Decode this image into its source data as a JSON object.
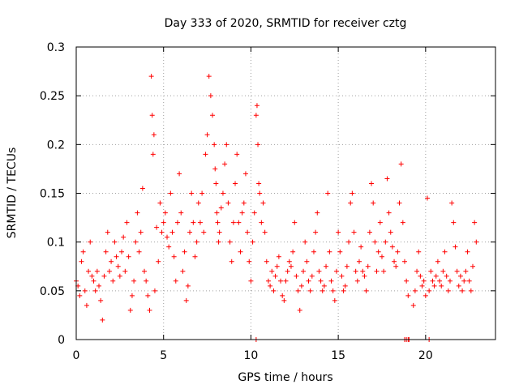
{
  "chart_data": {
    "type": "scatter",
    "title": "Day 333 of 2020, SRMTID for receiver cztg",
    "xlabel": "GPS time / hours",
    "ylabel": "SRMTID / TECUs",
    "xlim": [
      0,
      24
    ],
    "ylim": [
      0,
      0.3
    ],
    "xticks": [
      0,
      5,
      10,
      15,
      20
    ],
    "xtick_labels": [
      "0",
      "5",
      "10",
      "15",
      "20"
    ],
    "yticks": [
      0,
      0.05,
      0.1,
      0.15,
      0.2,
      0.25,
      0.3
    ],
    "ytick_labels": [
      "0",
      "0.05",
      "0.1",
      "0.15",
      "0.2",
      "0.25",
      "0.3"
    ],
    "grid": true,
    "marker": "+",
    "color": "#ff0000",
    "series": [
      {
        "name": "SRMTID",
        "x": [
          0.0,
          0.1,
          0.2,
          0.3,
          0.4,
          0.5,
          0.6,
          0.7,
          0.8,
          0.9,
          1.0,
          1.1,
          1.2,
          1.3,
          1.4,
          1.5,
          1.6,
          1.7,
          1.8,
          1.9,
          2.0,
          2.1,
          2.2,
          2.3,
          2.4,
          2.5,
          2.6,
          2.7,
          2.8,
          2.9,
          3.0,
          3.1,
          3.2,
          3.3,
          3.4,
          3.5,
          3.6,
          3.7,
          3.8,
          3.9,
          4.0,
          4.1,
          4.2,
          4.3,
          4.35,
          4.4,
          4.45,
          4.5,
          4.6,
          4.7,
          4.8,
          4.9,
          5.0,
          5.1,
          5.2,
          5.3,
          5.4,
          5.5,
          5.6,
          5.7,
          5.8,
          5.9,
          6.0,
          6.1,
          6.2,
          6.3,
          6.4,
          6.5,
          6.6,
          6.7,
          6.8,
          6.9,
          7.0,
          7.1,
          7.2,
          7.3,
          7.4,
          7.5,
          7.6,
          7.7,
          7.8,
          7.9,
          7.95,
          8.0,
          8.05,
          8.1,
          8.15,
          8.2,
          8.3,
          8.4,
          8.5,
          8.6,
          8.7,
          8.8,
          8.9,
          9.0,
          9.1,
          9.2,
          9.3,
          9.4,
          9.5,
          9.6,
          9.7,
          9.8,
          9.9,
          10.0,
          10.1,
          10.2,
          10.3,
          10.35,
          10.4,
          10.45,
          10.5,
          10.6,
          10.7,
          10.8,
          10.9,
          11.0,
          11.1,
          11.2,
          11.3,
          11.4,
          11.5,
          11.6,
          11.7,
          11.8,
          11.9,
          12.0,
          12.1,
          12.2,
          12.3,
          12.4,
          12.5,
          12.6,
          12.7,
          12.8,
          12.9,
          13.0,
          13.1,
          13.2,
          13.3,
          13.4,
          13.5,
          13.6,
          13.7,
          13.8,
          13.9,
          14.0,
          14.1,
          14.2,
          14.3,
          14.4,
          14.5,
          14.6,
          14.7,
          14.8,
          14.9,
          15.0,
          15.1,
          15.2,
          15.3,
          15.4,
          15.5,
          15.6,
          15.7,
          15.8,
          15.9,
          16.0,
          16.1,
          16.2,
          16.3,
          16.4,
          16.5,
          16.6,
          16.7,
          16.8,
          16.9,
          17.0,
          17.1,
          17.2,
          17.3,
          17.4,
          17.5,
          17.6,
          17.7,
          17.8,
          17.9,
          18.0,
          18.1,
          18.2,
          18.3,
          18.4,
          18.5,
          18.6,
          18.7,
          18.8,
          18.9,
          19.0,
          19.3,
          19.4,
          19.5,
          19.6,
          19.7,
          19.8,
          19.9,
          20.0,
          20.1,
          20.2,
          20.3,
          20.4,
          20.5,
          20.6,
          20.7,
          20.8,
          20.9,
          21.0,
          21.1,
          21.2,
          21.3,
          21.4,
          21.5,
          21.6,
          21.7,
          21.8,
          21.9,
          22.0,
          22.1,
          22.2,
          22.3,
          22.4,
          22.5,
          22.6,
          22.7,
          22.8,
          22.9,
          10.3,
          18.8,
          18.9,
          19.0,
          19.05,
          20.2
        ],
        "y": [
          0.06,
          0.055,
          0.045,
          0.08,
          0.09,
          0.05,
          0.035,
          0.07,
          0.1,
          0.065,
          0.06,
          0.05,
          0.07,
          0.055,
          0.04,
          0.02,
          0.065,
          0.09,
          0.11,
          0.07,
          0.08,
          0.06,
          0.1,
          0.085,
          0.075,
          0.065,
          0.09,
          0.105,
          0.07,
          0.12,
          0.085,
          0.03,
          0.045,
          0.06,
          0.1,
          0.13,
          0.09,
          0.11,
          0.155,
          0.07,
          0.06,
          0.045,
          0.03,
          0.27,
          0.23,
          0.19,
          0.21,
          0.05,
          0.115,
          0.08,
          0.14,
          0.11,
          0.12,
          0.13,
          0.105,
          0.095,
          0.15,
          0.11,
          0.085,
          0.06,
          0.12,
          0.17,
          0.13,
          0.07,
          0.09,
          0.04,
          0.055,
          0.11,
          0.15,
          0.12,
          0.085,
          0.1,
          0.14,
          0.12,
          0.15,
          0.11,
          0.19,
          0.21,
          0.27,
          0.25,
          0.23,
          0.2,
          0.175,
          0.16,
          0.13,
          0.12,
          0.1,
          0.11,
          0.135,
          0.15,
          0.18,
          0.2,
          0.14,
          0.1,
          0.08,
          0.12,
          0.16,
          0.19,
          0.12,
          0.09,
          0.13,
          0.14,
          0.17,
          0.11,
          0.08,
          0.06,
          0.1,
          0.13,
          0.23,
          0.24,
          0.2,
          0.16,
          0.15,
          0.12,
          0.14,
          0.11,
          0.08,
          0.06,
          0.055,
          0.07,
          0.05,
          0.065,
          0.075,
          0.085,
          0.06,
          0.045,
          0.04,
          0.06,
          0.07,
          0.08,
          0.075,
          0.09,
          0.12,
          0.065,
          0.05,
          0.03,
          0.055,
          0.07,
          0.1,
          0.08,
          0.06,
          0.05,
          0.065,
          0.09,
          0.11,
          0.13,
          0.07,
          0.06,
          0.05,
          0.055,
          0.075,
          0.15,
          0.09,
          0.06,
          0.05,
          0.04,
          0.07,
          0.11,
          0.09,
          0.065,
          0.05,
          0.055,
          0.075,
          0.1,
          0.14,
          0.15,
          0.11,
          0.07,
          0.06,
          0.08,
          0.095,
          0.07,
          0.065,
          0.05,
          0.075,
          0.11,
          0.16,
          0.14,
          0.1,
          0.07,
          0.09,
          0.12,
          0.085,
          0.07,
          0.1,
          0.165,
          0.13,
          0.11,
          0.095,
          0.08,
          0.075,
          0.09,
          0.14,
          0.18,
          0.12,
          0.08,
          0.06,
          0.045,
          0.035,
          0.05,
          0.07,
          0.09,
          0.065,
          0.055,
          0.06,
          0.045,
          0.145,
          0.05,
          0.07,
          0.06,
          0.055,
          0.065,
          0.08,
          0.06,
          0.055,
          0.07,
          0.09,
          0.065,
          0.05,
          0.06,
          0.14,
          0.12,
          0.095,
          0.07,
          0.055,
          0.065,
          0.05,
          0.06,
          0.07,
          0.09,
          0.06,
          0.05,
          0.075,
          0.12,
          0.1,
          0.0,
          0.0,
          0.0,
          0.0,
          0.0,
          0.0
        ]
      }
    ]
  }
}
